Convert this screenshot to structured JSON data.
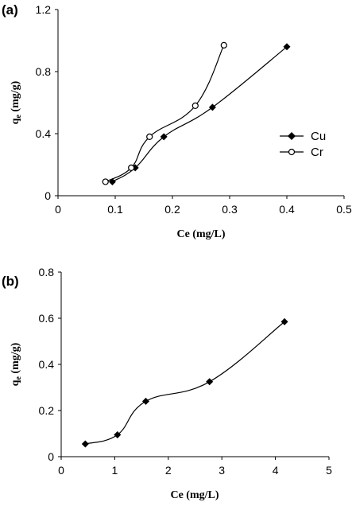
{
  "chart_data": [
    {
      "type": "line",
      "panel_label": "(a)",
      "xlabel": "Ce (mg/L)",
      "ylabel": {
        "main": "q",
        "sub": "e",
        "rest": " (mg/g)"
      },
      "xlim": [
        0,
        0.5
      ],
      "ylim": [
        0,
        1.2
      ],
      "xticks": [
        "0",
        "0.1",
        "0.2",
        "0.3",
        "0.4",
        "0.5"
      ],
      "yticks": [
        "0",
        "0.4",
        "0.8",
        "1.2"
      ],
      "xtick_values": [
        0,
        0.1,
        0.2,
        0.3,
        0.4,
        0.5
      ],
      "ytick_values": [
        0,
        0.4,
        0.8,
        1.2
      ],
      "legend_position": "right",
      "series": [
        {
          "name": "Cu",
          "marker": "filled-diamond",
          "color": "#000000",
          "x": [
            0.095,
            0.135,
            0.185,
            0.27,
            0.4
          ],
          "y": [
            0.09,
            0.18,
            0.38,
            0.57,
            0.96
          ]
        },
        {
          "name": "Cr",
          "marker": "open-circle",
          "color": "#000000",
          "x": [
            0.083,
            0.128,
            0.16,
            0.24,
            0.29
          ],
          "y": [
            0.09,
            0.18,
            0.38,
            0.58,
            0.97
          ]
        }
      ]
    },
    {
      "type": "line",
      "panel_label": "(b)",
      "xlabel": "Ce (mg/L)",
      "ylabel": {
        "main": "q",
        "sub": "e",
        "rest": " (mg/g)"
      },
      "xlim": [
        0,
        5
      ],
      "ylim": [
        0,
        0.8
      ],
      "xticks": [
        "0",
        "1",
        "2",
        "3",
        "4",
        "5"
      ],
      "yticks": [
        "0",
        "0.2",
        "0.4",
        "0.6",
        "0.8"
      ],
      "xtick_values": [
        0,
        1,
        2,
        3,
        4,
        5
      ],
      "ytick_values": [
        0,
        0.2,
        0.4,
        0.6,
        0.8
      ],
      "series": [
        {
          "name": "",
          "marker": "filled-diamond",
          "color": "#000000",
          "x": [
            0.45,
            1.05,
            1.58,
            2.77,
            4.17
          ],
          "y": [
            0.055,
            0.095,
            0.24,
            0.325,
            0.585
          ]
        }
      ]
    }
  ]
}
